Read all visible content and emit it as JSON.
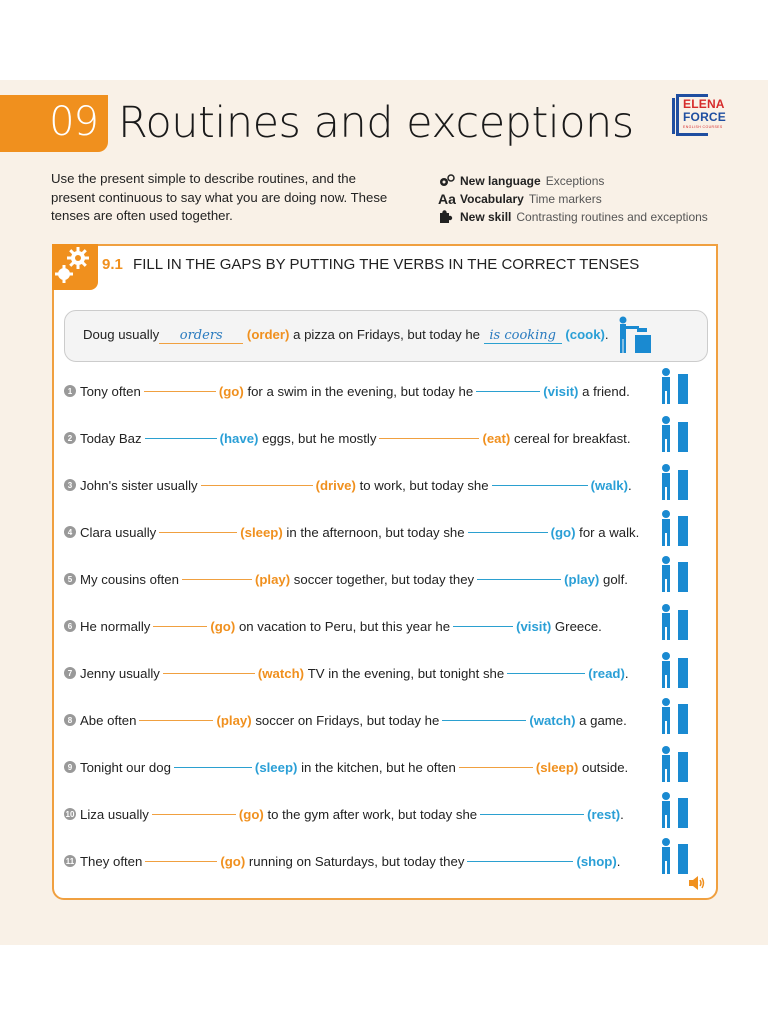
{
  "header": {
    "chapter_number": "09",
    "chapter_title": "Routines and exceptions",
    "logo": {
      "line1": "ELENA",
      "line2": "FORCE",
      "line3": "ENGLISH COURSES"
    }
  },
  "intro": {
    "text": "Use the present simple to describe routines, and the present continuous to say what you are doing now. These tenses are often used together."
  },
  "meta": [
    {
      "icon": "gears-icon",
      "label": "New language",
      "value": "Exceptions"
    },
    {
      "icon": "aa-icon",
      "glyph": "Aa",
      "label": "Vocabulary",
      "value": "Time markers"
    },
    {
      "icon": "puzzle-icon",
      "label": "New skill",
      "value": "Contrasting routines and exceptions"
    }
  ],
  "exercise": {
    "number": "9.1",
    "title": "FILL IN THE GAPS BY PUTTING THE VERBS IN THE CORRECT TENSES",
    "example": {
      "before": "Doug usually",
      "answer1": "orders",
      "verb1": "(order)",
      "middle": " a pizza on Fridays, but today he ",
      "answer2": "is cooking",
      "verb2": "(cook)",
      "after": "."
    },
    "items": [
      {
        "n": "1",
        "a": "Tony often",
        "v1": "(go)",
        "c1": "orange",
        "b": "for a swim in the evening, but today he",
        "v2": "(visit)",
        "c2": "blue",
        "end": "a friend.",
        "g1": 72,
        "g2": 64
      },
      {
        "n": "2",
        "a": "Today Baz",
        "v1": "(have)",
        "c1": "blue",
        "b": "eggs, but he mostly",
        "v2": "(eat)",
        "c2": "orange",
        "end": "cereal for breakfast.",
        "g1": 72,
        "g2": 100
      },
      {
        "n": "3",
        "a": "John's sister usually",
        "v1": "(drive)",
        "c1": "orange",
        "b": "to work, but today she",
        "v2": "(walk)",
        "c2": "blue",
        "end": ".",
        "g1": 112,
        "g2": 96
      },
      {
        "n": "4",
        "a": "Clara usually",
        "v1": "(sleep)",
        "c1": "orange",
        "b": "in the afternoon, but today she",
        "v2": "(go)",
        "c2": "blue",
        "end": "for a walk.",
        "g1": 78,
        "g2": 80
      },
      {
        "n": "5",
        "a": "My cousins often",
        "v1": "(play)",
        "c1": "orange",
        "b": "soccer together, but today they",
        "v2": "(play)",
        "c2": "blue",
        "end": "golf.",
        "g1": 70,
        "g2": 84
      },
      {
        "n": "6",
        "a": "He normally",
        "v1": "(go)",
        "c1": "orange",
        "b": "on vacation to Peru, but this year he",
        "v2": "(visit)",
        "c2": "blue",
        "end": "Greece.",
        "g1": 54,
        "g2": 60
      },
      {
        "n": "7",
        "a": "Jenny usually",
        "v1": "(watch)",
        "c1": "orange",
        "b": "TV in the evening, but tonight she",
        "v2": "(read)",
        "c2": "blue",
        "end": ".",
        "g1": 92,
        "g2": 78
      },
      {
        "n": "8",
        "a": "Abe often",
        "v1": "(play)",
        "c1": "orange",
        "b": "soccer on Fridays, but today he",
        "v2": "(watch)",
        "c2": "blue",
        "end": "a game.",
        "g1": 74,
        "g2": 84
      },
      {
        "n": "9",
        "a": "Tonight our dog",
        "v1": "(sleep)",
        "c1": "blue",
        "b": "in the kitchen, but he often",
        "v2": "(sleep)",
        "c2": "orange",
        "end": "outside.",
        "g1": 78,
        "g2": 74
      },
      {
        "n": "10",
        "a": "Liza usually",
        "v1": "(go)",
        "c1": "orange",
        "b": "to the gym after work, but today she",
        "v2": "(rest)",
        "c2": "blue",
        "end": ".",
        "g1": 84,
        "g2": 104
      },
      {
        "n": "11",
        "a": "They often",
        "v1": "(go)",
        "c1": "orange",
        "b": "running on Saturdays, but today they",
        "v2": "(shop)",
        "c2": "blue",
        "end": ".",
        "g1": 72,
        "g2": 106
      }
    ],
    "pictures": [
      "cooking-person-icon",
      "visiting-friend-icon",
      "breakfast-table-icon",
      "walking-woman-icon",
      "walking-man-icon",
      "golf-players-icon",
      "tourist-greece-icon",
      "reading-woman-icon",
      "watching-tv-icon",
      "dog-kitchen-icon",
      "resting-bed-icon",
      "shopping-women-icon"
    ],
    "audio_icon": "speaker-icon"
  },
  "colors": {
    "accent_orange": "#f0901e",
    "accent_blue": "#2a9fd6",
    "page_bg": "#f9f1e7",
    "logo_blue": "#1f4ea0",
    "logo_red": "#d62b2b"
  }
}
